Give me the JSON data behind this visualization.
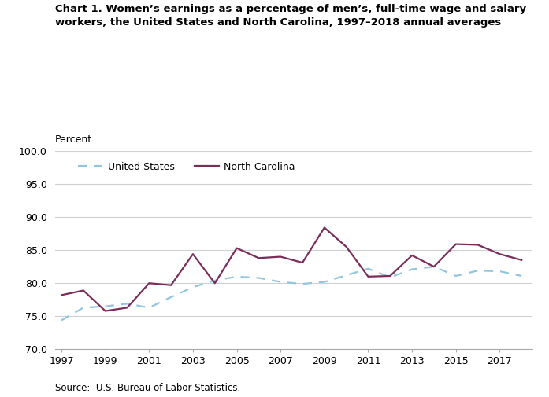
{
  "years": [
    1997,
    1998,
    1999,
    2000,
    2001,
    2002,
    2003,
    2004,
    2005,
    2006,
    2007,
    2008,
    2009,
    2010,
    2011,
    2012,
    2013,
    2014,
    2015,
    2016,
    2017,
    2018
  ],
  "us_values": [
    74.4,
    76.3,
    76.5,
    76.9,
    76.3,
    77.9,
    79.4,
    80.4,
    81.0,
    80.8,
    80.2,
    79.9,
    80.2,
    81.2,
    82.2,
    80.9,
    82.1,
    82.5,
    81.1,
    81.9,
    81.8,
    81.1
  ],
  "nc_values": [
    78.2,
    78.9,
    75.8,
    76.3,
    80.0,
    79.7,
    84.4,
    80.0,
    85.3,
    83.8,
    84.0,
    83.1,
    88.4,
    85.5,
    81.0,
    81.1,
    84.2,
    82.5,
    85.9,
    85.8,
    84.4,
    83.5
  ],
  "title": "Chart 1. Women’s earnings as a percentage of men’s, full-time wage and salary\nworkers, the United States and North Carolina, 1997–2018 annual averages",
  "ylabel": "Percent",
  "source": "Source:  U.S. Bureau of Labor Statistics.",
  "us_color": "#92c5de",
  "nc_color": "#7b2d5a",
  "ylim_min": 70.0,
  "ylim_max": 100.0,
  "yticks": [
    70.0,
    75.0,
    80.0,
    85.0,
    90.0,
    95.0,
    100.0
  ],
  "xticks": [
    1997,
    1999,
    2001,
    2003,
    2005,
    2007,
    2009,
    2011,
    2013,
    2015,
    2017
  ],
  "legend_us": "United States",
  "legend_nc": "North Carolina"
}
